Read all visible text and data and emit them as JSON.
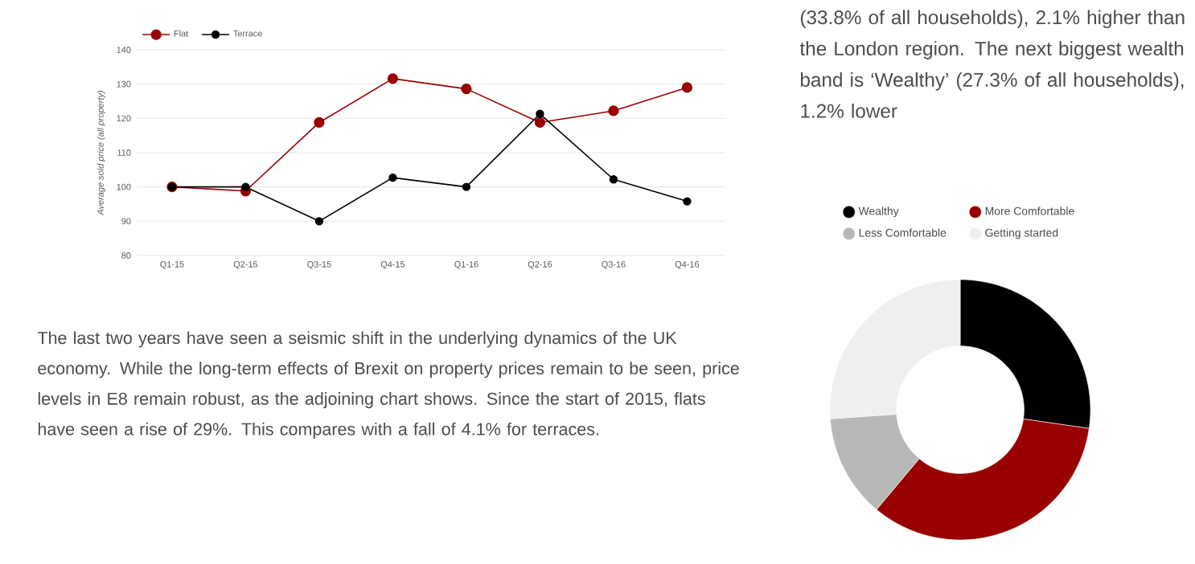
{
  "chart_data": [
    {
      "type": "line",
      "categories": [
        "Q1-15",
        "Q2-15",
        "Q3-15",
        "Q4-15",
        "Q1-16",
        "Q2-16",
        "Q3-16",
        "Q4-16"
      ],
      "ylabel": "Average sold price (all property)",
      "ylim": [
        80,
        140
      ],
      "yticks": [
        80,
        90,
        100,
        110,
        120,
        130,
        140
      ],
      "grid": "y",
      "legend": "top left",
      "marker": "circle",
      "series": [
        {
          "name": "Flat",
          "color": "#990000",
          "values": [
            100,
            98.8,
            118.8,
            131.6,
            128.6,
            118.8,
            122.2,
            129
          ]
        },
        {
          "name": "Terrace",
          "color": "#000000",
          "values": [
            100,
            100,
            90,
            102.7,
            100,
            121.3,
            102.2,
            95.8
          ]
        }
      ],
      "annotations": [
        "The last two years have seen a seismic shift in the underlying dynamics of the UK economy. While the long-term effects of Brexit on property prices remain to be seen, price levels in E8 remain robust, as the adjoining chart shows. Since the start of 2015, flats have seen a rise of 29%. This compares with a fall of 4.1% for terraces."
      ]
    },
    {
      "type": "donut",
      "categories": [
        "Wealthy",
        "More Comfortable",
        "Less Comfortable",
        "Getting started"
      ],
      "values": [
        27.3,
        33.8,
        12.8,
        26.1
      ],
      "colors": [
        "#000000",
        "#990000",
        "#b7b7b7",
        "#efefef"
      ],
      "legend": "top",
      "annotations": [
        "(33.8% of all households), 2.1% higher than the London region. The next biggest wealth band is ‘Wealthy’ (27.3% of all households), 1.2% lower"
      ]
    }
  ]
}
